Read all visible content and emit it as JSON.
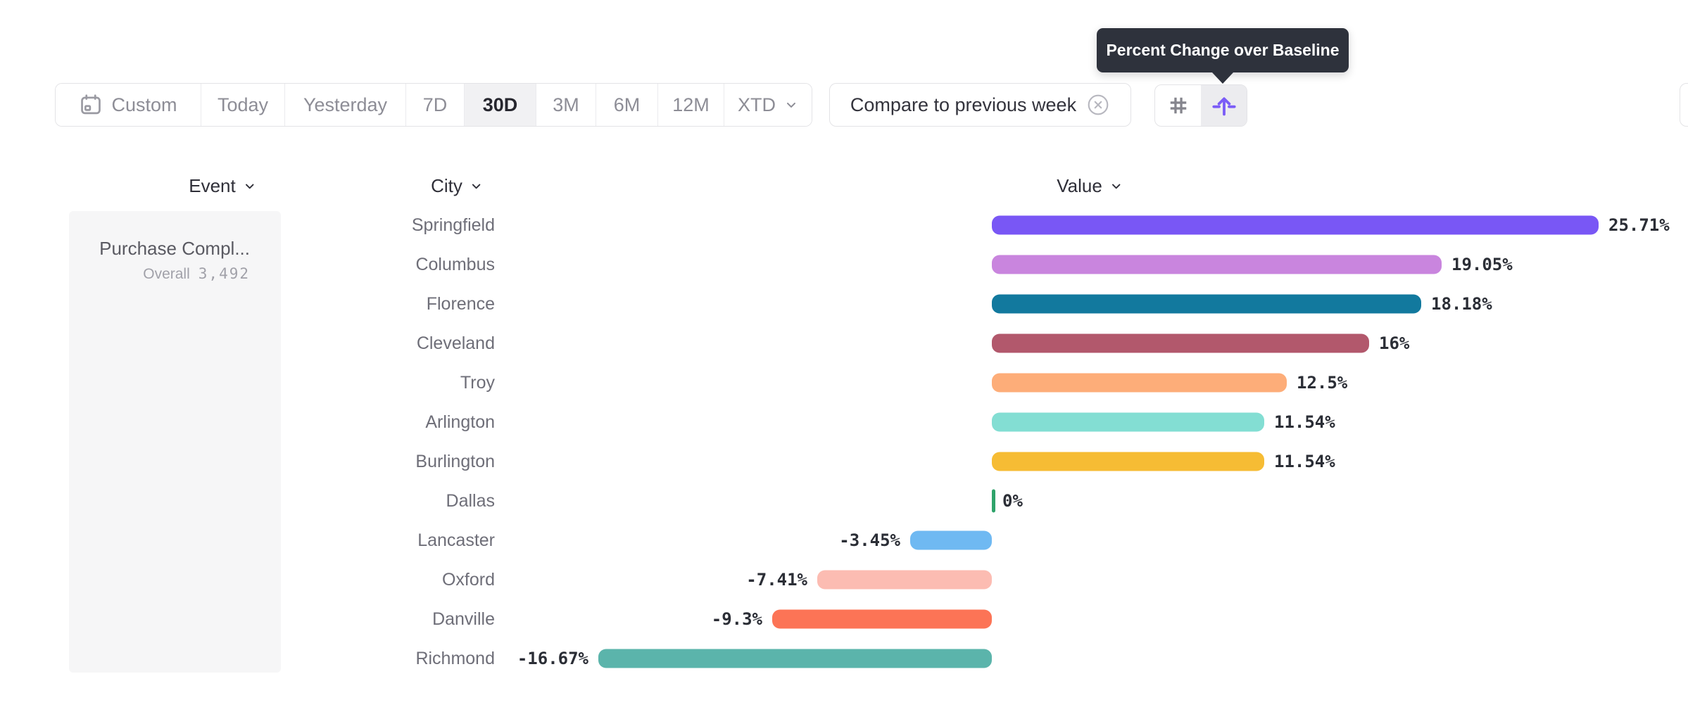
{
  "tooltip": {
    "text": "Percent Change over Baseline"
  },
  "toolbar": {
    "ranges": [
      {
        "label": "Custom"
      },
      {
        "label": "Today"
      },
      {
        "label": "Yesterday"
      },
      {
        "label": "7D"
      },
      {
        "label": "30D",
        "selected": true
      },
      {
        "label": "3M"
      },
      {
        "label": "6M"
      },
      {
        "label": "12M"
      },
      {
        "label": "XTD",
        "has_dropdown": true
      }
    ],
    "selected_range": "30D",
    "compare_label": "Compare to previous week",
    "view_toggle": {
      "options": [
        "number-values",
        "percent-change-over-baseline"
      ],
      "selected": "percent-change-over-baseline"
    }
  },
  "columns": [
    {
      "label": "Event"
    },
    {
      "label": "City"
    },
    {
      "label": "Value"
    }
  ],
  "event_panel": {
    "title": "Purchase Compl...",
    "overall_label": "Overall",
    "overall_value": "3,492"
  },
  "chart_data": {
    "type": "bar",
    "orientation": "horizontal",
    "metric": "Percent Change over Baseline",
    "unit": "percent",
    "xlim": [
      -16.67,
      25.71
    ],
    "categories": [
      "Springfield",
      "Columbus",
      "Florence",
      "Cleveland",
      "Troy",
      "Arlington",
      "Burlington",
      "Dallas",
      "Lancaster",
      "Oxford",
      "Danville",
      "Richmond"
    ],
    "values": [
      25.71,
      19.05,
      18.18,
      16,
      12.5,
      11.54,
      11.54,
      0,
      -3.45,
      -7.41,
      -9.3,
      -16.67
    ],
    "rows": [
      {
        "city": "Springfield",
        "pct": 25.71,
        "label": "25.71%",
        "color": "#7957f5"
      },
      {
        "city": "Columbus",
        "pct": 19.05,
        "label": "19.05%",
        "color": "#c985de"
      },
      {
        "city": "Florence",
        "pct": 18.18,
        "label": "18.18%",
        "color": "#12799e"
      },
      {
        "city": "Cleveland",
        "pct": 16,
        "label": "16%",
        "color": "#b2586c"
      },
      {
        "city": "Troy",
        "pct": 12.5,
        "label": "12.5%",
        "color": "#fdad79"
      },
      {
        "city": "Arlington",
        "pct": 11.54,
        "label": "11.54%",
        "color": "#83ded3"
      },
      {
        "city": "Burlington",
        "pct": 11.54,
        "label": "11.54%",
        "color": "#f6bc34"
      },
      {
        "city": "Dallas",
        "pct": 0,
        "label": "0%",
        "color": "#2fa36b"
      },
      {
        "city": "Lancaster",
        "pct": -3.45,
        "label": "-3.45%",
        "color": "#6fb9f2"
      },
      {
        "city": "Oxford",
        "pct": -7.41,
        "label": "-7.41%",
        "color": "#fcbcb2"
      },
      {
        "city": "Danville",
        "pct": -9.3,
        "label": "-9.3%",
        "color": "#fc7456"
      },
      {
        "city": "Richmond",
        "pct": -16.67,
        "label": "-16.67%",
        "color": "#5bb4ab"
      }
    ]
  },
  "colors": {
    "accent_purple": "#7b5cf7",
    "tooltip_bg": "#2e323c",
    "border": "#e3e3e6",
    "muted_text": "#8d8d96",
    "city_text": "#6e6e78",
    "value_text": "#2b2e36",
    "panel_bg": "#f6f6f7",
    "selected_segment_bg": "#f1f1f3"
  }
}
